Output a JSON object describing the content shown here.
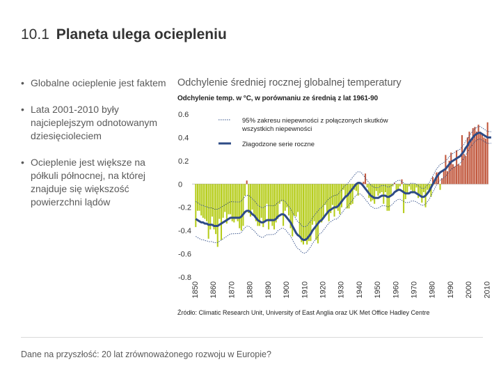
{
  "title": {
    "number": "10.1",
    "text": "Planeta ulega ociepleniu"
  },
  "bullets": [
    "Globalne ocieplenie jest faktem",
    "Lata 2001-2010 były najcieplejszym odnotowanym dziesięcioleciem",
    "Ocieplenie jest większe na półkuli północnej, na której znajduje się większość powierzchni lądów"
  ],
  "chart_heading": "Odchylenie średniej rocznej globalnej temperatury",
  "source": "Źródło: Climatic Research Unit, University of East Anglia oraz UK Met Office Hadley Centre",
  "footer": "Dane na przyszłość: 20 lat zrównoważonego rozwoju w Europie?",
  "chart_data": {
    "type": "bar",
    "subtitle": "Odchylenie temp. w °C, w porównaniu ze średnią z lat 1961-90",
    "ylim": [
      -0.8,
      0.6
    ],
    "yticks": [
      "0.6",
      "0.4",
      "0.2",
      "0",
      "-0.2",
      "-0.4",
      "-0.6",
      "-0.8"
    ],
    "xlim": [
      1850,
      2011
    ],
    "xticks": [
      "1850",
      "1860",
      "1870",
      "1880",
      "1890",
      "1900",
      "1910",
      "1920",
      "1930",
      "1940",
      "1950",
      "1960",
      "1970",
      "1980",
      "1990",
      "2000",
      "2010"
    ],
    "colors": {
      "positive": "#c0553a",
      "negative": "#b5cc18",
      "smoothed": "#2e4b86",
      "uncertainty": "#2e4b86"
    },
    "legend": [
      {
        "label": "95% zakresu niepewności z połączonych skutków wszystkich niepewności",
        "style": "dotted"
      },
      {
        "label": "Złagodzone serie roczne",
        "style": "solid"
      }
    ],
    "annual": {
      "start_year": 1850,
      "values": [
        -0.37,
        -0.23,
        -0.23,
        -0.27,
        -0.29,
        -0.3,
        -0.32,
        -0.47,
        -0.39,
        -0.28,
        -0.39,
        -0.43,
        -0.54,
        -0.3,
        -0.48,
        -0.29,
        -0.24,
        -0.34,
        -0.26,
        -0.26,
        -0.32,
        -0.33,
        -0.3,
        -0.32,
        -0.38,
        -0.4,
        -0.36,
        -0.1,
        0.03,
        -0.25,
        -0.28,
        -0.22,
        -0.26,
        -0.32,
        -0.36,
        -0.36,
        -0.29,
        -0.37,
        -0.32,
        -0.17,
        -0.39,
        -0.32,
        -0.36,
        -0.39,
        -0.33,
        -0.3,
        -0.17,
        -0.15,
        -0.36,
        -0.23,
        -0.2,
        -0.27,
        -0.38,
        -0.45,
        -0.27,
        -0.28,
        -0.24,
        -0.44,
        -0.5,
        -0.52,
        -0.49,
        -0.52,
        -0.49,
        -0.49,
        -0.35,
        -0.32,
        -0.48,
        -0.51,
        -0.33,
        -0.33,
        -0.28,
        -0.18,
        -0.26,
        -0.32,
        -0.25,
        -0.18,
        -0.28,
        -0.21,
        -0.23,
        -0.26,
        -0.2,
        -0.05,
        -0.11,
        -0.21,
        -0.21,
        -0.18,
        -0.17,
        -0.05,
        -0.06,
        -0.1,
        0.01,
        0.01,
        0.02,
        0.09,
        -0.03,
        -0.12,
        -0.15,
        -0.14,
        -0.17,
        -0.06,
        -0.1,
        -0.08,
        -0.07,
        -0.17,
        -0.07,
        -0.23,
        -0.23,
        -0.09,
        -0.02,
        0.01,
        -0.07,
        -0.06,
        -0.02,
        0.04,
        -0.25,
        -0.13,
        -0.08,
        -0.02,
        -0.05,
        -0.08,
        -0.08,
        -0.03,
        -0.12,
        -0.09,
        -0.16,
        -0.07,
        -0.2,
        -0.05,
        -0.06,
        -0.11,
        0.06,
        0.04,
        0.1,
        0.1,
        -0.05,
        0.05,
        0.11,
        0.25,
        0.11,
        0.2,
        0.27,
        0.17,
        0.15,
        0.29,
        0.17,
        0.16,
        0.42,
        0.26,
        0.24,
        0.4,
        0.45,
        0.38,
        0.48,
        0.49,
        0.45,
        0.51,
        0.45,
        0.43,
        0.4,
        0.39,
        0.53
      ]
    },
    "smoothed": {
      "start_year": 1850,
      "values": [
        -0.3,
        -0.31,
        -0.32,
        -0.33,
        -0.33,
        -0.34,
        -0.34,
        -0.35,
        -0.35,
        -0.35,
        -0.36,
        -0.36,
        -0.36,
        -0.35,
        -0.34,
        -0.33,
        -0.32,
        -0.31,
        -0.3,
        -0.29,
        -0.29,
        -0.29,
        -0.29,
        -0.29,
        -0.29,
        -0.28,
        -0.26,
        -0.24,
        -0.23,
        -0.23,
        -0.24,
        -0.26,
        -0.27,
        -0.29,
        -0.31,
        -0.32,
        -0.33,
        -0.33,
        -0.32,
        -0.31,
        -0.31,
        -0.31,
        -0.31,
        -0.31,
        -0.3,
        -0.28,
        -0.27,
        -0.26,
        -0.26,
        -0.27,
        -0.29,
        -0.31,
        -0.33,
        -0.36,
        -0.39,
        -0.42,
        -0.44,
        -0.45,
        -0.47,
        -0.48,
        -0.48,
        -0.47,
        -0.45,
        -0.43,
        -0.4,
        -0.38,
        -0.36,
        -0.34,
        -0.32,
        -0.31,
        -0.29,
        -0.27,
        -0.25,
        -0.23,
        -0.22,
        -0.21,
        -0.2,
        -0.2,
        -0.19,
        -0.17,
        -0.15,
        -0.13,
        -0.11,
        -0.1,
        -0.08,
        -0.06,
        -0.04,
        -0.02,
        0.0,
        0.01,
        0.01,
        0.0,
        -0.02,
        -0.04,
        -0.06,
        -0.08,
        -0.1,
        -0.11,
        -0.12,
        -0.12,
        -0.12,
        -0.11,
        -0.1,
        -0.1,
        -0.1,
        -0.11,
        -0.11,
        -0.1,
        -0.09,
        -0.07,
        -0.06,
        -0.05,
        -0.05,
        -0.06,
        -0.07,
        -0.08,
        -0.08,
        -0.08,
        -0.07,
        -0.07,
        -0.07,
        -0.08,
        -0.09,
        -0.1,
        -0.11,
        -0.11,
        -0.1,
        -0.08,
        -0.06,
        -0.03,
        0.0,
        0.03,
        0.06,
        0.08,
        0.1,
        0.11,
        0.12,
        0.13,
        0.15,
        0.17,
        0.19,
        0.2,
        0.21,
        0.22,
        0.23,
        0.24,
        0.26,
        0.28,
        0.31,
        0.33,
        0.36,
        0.38,
        0.4,
        0.42,
        0.43,
        0.44,
        0.44,
        0.43,
        0.42,
        0.41,
        0.4,
        0.4,
        0.4
      ]
    },
    "uncertainty_halfwidth": {
      "start": 0.15,
      "end": 0.05
    }
  }
}
